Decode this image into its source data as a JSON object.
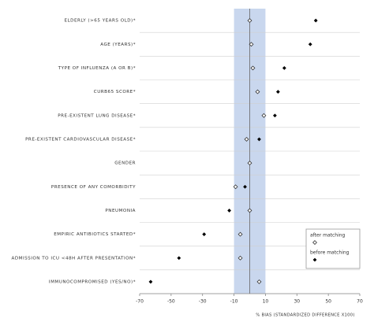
{
  "chart_data": {
    "type": "dotplot",
    "x_label": "% BIAS (STANDARDIZED DIFFERENCE X100)",
    "categories": [
      "ELDERLY (>65 YEARS OLD)*",
      "AGE (YEARS)*",
      "TYPE OF INFLUENZA (A OR B)*",
      "CURB65 SCORE*",
      "PRE-EXISTENT LUNG DISEASE*",
      "PRE-EXISTENT CARDIOVASCULAR DISEASE*",
      "GENDER",
      "PRESENCE OF ANY COMORBIDITY",
      "PNEUMONIA",
      "EMPIRIC ANTIBIOTICS STARTED*",
      "ADMISSION TO ICU <48H AFTER PRESENTATION*",
      "IMMUNOCOMPROMISED (YES/NO)*"
    ],
    "series": [
      {
        "name": "before matching",
        "color": "#000000",
        "marker": "filled-diamond",
        "values": [
          42,
          38.5,
          22,
          18,
          16,
          6,
          0,
          -3,
          -13,
          -29,
          -45,
          -63
        ]
      },
      {
        "name": "after matching",
        "color": "#333333",
        "marker": "open-diamond",
        "values": [
          0,
          1,
          2,
          5,
          9,
          -2,
          0,
          -9,
          0,
          -6,
          -6,
          6
        ]
      }
    ],
    "xlim": [
      -70,
      70
    ],
    "xticks": [
      -70,
      -50,
      -30,
      -10,
      10,
      30,
      50,
      70
    ],
    "shaded_band": [
      -10,
      10
    ],
    "band_color": "#c9d7ee",
    "grid": true,
    "legend": "bottom-right"
  }
}
